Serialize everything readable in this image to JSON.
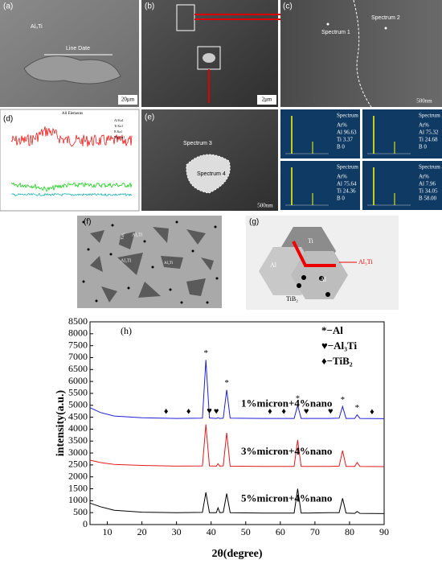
{
  "panels": {
    "a": {
      "label": "(a)",
      "phase": "Al₃Ti",
      "line": "Line Date",
      "scale": "20μm"
    },
    "b": {
      "label": "(b)",
      "scale": "2μm"
    },
    "c": {
      "label": "(c)",
      "spectrum1": "Spectrum 1",
      "spectrum2": "Spectrum 2",
      "scale": "500nm"
    },
    "d": {
      "label": "(d)",
      "title": "All Elements",
      "legend": [
        "Al Ka1",
        "Ti Ka1",
        "B Ka1",
        "Mg Ka1"
      ]
    },
    "e": {
      "label": "(e)",
      "spectrum3": "Spectrum 3",
      "spectrum4": "Spectrum 4",
      "scale": "500nm"
    },
    "spectra": [
      {
        "name": "Spectrum 1",
        "lines": [
          "At%",
          "Al 96.63",
          "Ti 3.37",
          "B 0"
        ]
      },
      {
        "name": "Spectrum 2",
        "lines": [
          "At%",
          "Al 75.32",
          "Ti 24.68",
          "B 0"
        ]
      },
      {
        "name": "Spectrum 3",
        "lines": [
          "At%",
          "Al 75.64",
          "Ti 24.36",
          "B 0"
        ]
      },
      {
        "name": "Spectrum 4",
        "lines": [
          "At%",
          "Al 7.96",
          "Ti 34.05",
          "B 58.00"
        ]
      }
    ],
    "f": {
      "label": "(f)",
      "phase": "Al₃Ti",
      "boride": "TiB₂"
    },
    "g": {
      "label": "(g)",
      "ti": "Ti",
      "al": "Al",
      "phase": "Al₃Ti",
      "boride": "TiB₂"
    }
  },
  "chart_data": {
    "type": "line",
    "panel_label": "(h)",
    "xlabel": "2θ(degree)",
    "ylabel": "intensity(a.u.)",
    "x": [
      5,
      8,
      12,
      20,
      30,
      37.5,
      38.5,
      39.5,
      41.5,
      42,
      42.5,
      43.5,
      44.5,
      45.5,
      55,
      64,
      65,
      66,
      74,
      77,
      78,
      79,
      81.5,
      82.2,
      83,
      90
    ],
    "series": [
      {
        "name": "1%micron+4%nano",
        "color": "#1f1fd6",
        "values": [
          4900,
          4700,
          4550,
          4480,
          4450,
          4460,
          6900,
          4470,
          4450,
          4480,
          4450,
          4460,
          5650,
          4460,
          4450,
          4450,
          5000,
          4450,
          4450,
          4460,
          4950,
          4450,
          4450,
          4600,
          4450,
          4440
        ]
      },
      {
        "name": "3%micron+4%nano",
        "color": "#e31a1c",
        "values": [
          2700,
          2600,
          2520,
          2480,
          2450,
          2460,
          4200,
          2460,
          2450,
          2550,
          2450,
          2460,
          3850,
          2450,
          2440,
          2440,
          3550,
          2440,
          2440,
          2450,
          3100,
          2440,
          2440,
          2600,
          2440,
          2430
        ]
      },
      {
        "name": "5%micron+4%nano",
        "color": "#000000",
        "values": [
          900,
          750,
          600,
          520,
          500,
          510,
          1350,
          500,
          500,
          700,
          500,
          510,
          1300,
          500,
          480,
          480,
          1500,
          480,
          500,
          500,
          1100,
          480,
          470,
          550,
          470,
          460
        ]
      }
    ],
    "legend": [
      "*−Al",
      "♥−Al₃Ti",
      "♦−TiB₂"
    ],
    "markers": [
      {
        "symbol": "*",
        "x": 38.5
      },
      {
        "symbol": "*",
        "x": 44.5
      },
      {
        "symbol": "*",
        "x": 65
      },
      {
        "symbol": "*",
        "x": 78
      },
      {
        "symbol": "*",
        "x": 82.2
      },
      {
        "symbol": "♥",
        "x": 39.5
      },
      {
        "symbol": "♥",
        "x": 41.5
      },
      {
        "symbol": "♥",
        "x": 67.5
      },
      {
        "symbol": "♥",
        "x": 74.5
      },
      {
        "symbol": "♦",
        "x": 27
      },
      {
        "symbol": "♦",
        "x": 33.5
      },
      {
        "symbol": "♦",
        "x": 57
      },
      {
        "symbol": "♦",
        "x": 61
      },
      {
        "symbol": "♦",
        "x": 86.5
      }
    ],
    "xlim": [
      5,
      90
    ],
    "xticks": [
      10,
      20,
      30,
      40,
      50,
      60,
      70,
      80,
      90
    ],
    "ylim": [
      0,
      8500
    ],
    "yticks": [
      0,
      500,
      1000,
      1500,
      2000,
      2500,
      3000,
      3500,
      4000,
      4500,
      5000,
      5500,
      6000,
      6500,
      7000,
      7500,
      8000,
      8500
    ]
  }
}
